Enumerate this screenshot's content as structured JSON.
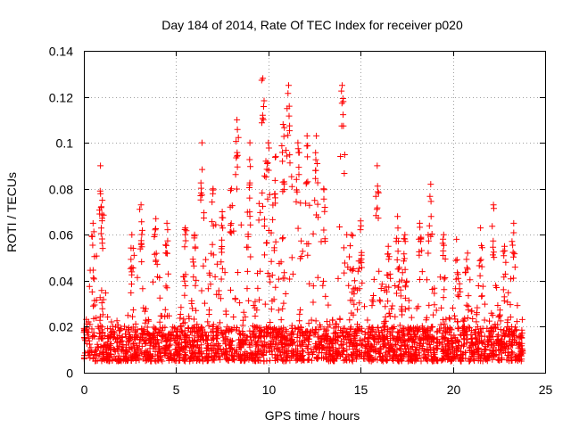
{
  "chart_data": {
    "type": "scatter",
    "title": "Day 184 of 2014, Rate Of TEC Index for receiver p020",
    "xlabel": "GPS time / hours",
    "ylabel": "ROTI / TECUs",
    "xlim": [
      0,
      25
    ],
    "ylim": [
      0,
      0.14
    ],
    "xticks": [
      0,
      5,
      10,
      15,
      20,
      25
    ],
    "xtick_labels": [
      "0",
      "5",
      "10",
      "15",
      "20",
      "25"
    ],
    "yticks": [
      0,
      0.02,
      0.04,
      0.06,
      0.08,
      0.1,
      0.12,
      0.14
    ],
    "ytick_labels": [
      "0",
      "0.02",
      "0.04",
      "0.06",
      "0.08",
      "0.1",
      "0.12",
      "0.14"
    ],
    "grid": true,
    "marker": "+",
    "color": "#ff0000",
    "x_data_range": [
      0,
      23.8
    ],
    "baseline_band": [
      0.005,
      0.02
    ],
    "peaks": [
      {
        "x": 0.5,
        "y": 0.065
      },
      {
        "x": 0.9,
        "y": 0.09
      },
      {
        "x": 1.0,
        "y": 0.075
      },
      {
        "x": 2.6,
        "y": 0.06
      },
      {
        "x": 3.1,
        "y": 0.073
      },
      {
        "x": 3.9,
        "y": 0.067
      },
      {
        "x": 4.5,
        "y": 0.065
      },
      {
        "x": 5.5,
        "y": 0.063
      },
      {
        "x": 6.0,
        "y": 0.06
      },
      {
        "x": 6.4,
        "y": 0.1
      },
      {
        "x": 7.0,
        "y": 0.08
      },
      {
        "x": 7.5,
        "y": 0.07
      },
      {
        "x": 8.0,
        "y": 0.08
      },
      {
        "x": 8.3,
        "y": 0.11
      },
      {
        "x": 9.0,
        "y": 0.1
      },
      {
        "x": 9.7,
        "y": 0.128
      },
      {
        "x": 10.0,
        "y": 0.1
      },
      {
        "x": 10.4,
        "y": 0.094
      },
      {
        "x": 10.8,
        "y": 0.108
      },
      {
        "x": 11.1,
        "y": 0.125
      },
      {
        "x": 11.6,
        "y": 0.1
      },
      {
        "x": 12.1,
        "y": 0.103
      },
      {
        "x": 12.6,
        "y": 0.103
      },
      {
        "x": 13.0,
        "y": 0.08
      },
      {
        "x": 14.0,
        "y": 0.125
      },
      {
        "x": 14.5,
        "y": 0.06
      },
      {
        "x": 15.0,
        "y": 0.066
      },
      {
        "x": 15.9,
        "y": 0.09
      },
      {
        "x": 16.5,
        "y": 0.055
      },
      {
        "x": 17.0,
        "y": 0.068
      },
      {
        "x": 17.4,
        "y": 0.06
      },
      {
        "x": 18.2,
        "y": 0.065
      },
      {
        "x": 18.8,
        "y": 0.082
      },
      {
        "x": 19.5,
        "y": 0.06
      },
      {
        "x": 20.2,
        "y": 0.058
      },
      {
        "x": 20.8,
        "y": 0.052
      },
      {
        "x": 21.5,
        "y": 0.063
      },
      {
        "x": 22.2,
        "y": 0.073
      },
      {
        "x": 22.8,
        "y": 0.055
      },
      {
        "x": 23.3,
        "y": 0.065
      }
    ]
  }
}
